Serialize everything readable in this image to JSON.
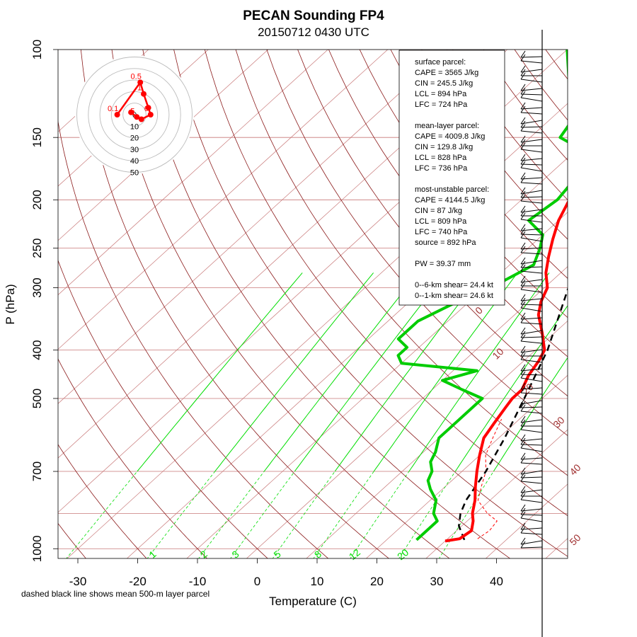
{
  "chart_data": {
    "type": "skew-t log-p sounding",
    "title": "PECAN Sounding FP4",
    "subtitle": "20150712 0430 UTC",
    "xlabel": "Temperature (C)",
    "ylabel": "P (hPa)",
    "footnote": "dashed black line shows mean 500-m layer parcel",
    "x_ticks": [
      -30,
      -20,
      -10,
      0,
      10,
      20,
      30,
      40
    ],
    "y_ticks": [
      100,
      150,
      200,
      250,
      300,
      400,
      500,
      700,
      1000
    ],
    "ylim_hpa": [
      1050,
      100
    ],
    "dry_adiabat_labels": [
      "0",
      "10",
      "20",
      "30",
      "40",
      "50"
    ],
    "mixing_ratio_labels": [
      "1",
      "2",
      "3",
      "5",
      "8",
      "12",
      "20"
    ],
    "hodograph_ring_labels": [
      "0",
      "10",
      "20",
      "30",
      "40",
      "50"
    ],
    "hodograph_height_labels": [
      "0.5",
      "1",
      "0.1",
      "6",
      "5"
    ],
    "colors": {
      "temperature": "#ff0000",
      "dewpoint": "#00cc00",
      "isotherm": "#c87878",
      "dry_adiabat": "#8b1a1a",
      "mixing_ratio": "#00dd00",
      "parcel": "#000000",
      "label_brown": "#a03030"
    },
    "stats_panel": [
      "surface parcel:",
      "CAPE = 3565 J/kg",
      "CIN = 245.5 J/kg",
      "LCL = 894 hPa",
      "LFC = 724 hPa",
      "",
      "mean-layer parcel:",
      "CAPE = 4009.8 J/kg",
      "CIN = 129.8 J/kg",
      "LCL = 828 hPa",
      "LFC = 736 hPa",
      "",
      "most-unstable parcel:",
      "CAPE = 4144.5 J/kg",
      "CIN = 87 J/kg",
      "LCL = 809 hPa",
      "LFC = 740 hPa",
      "source = 892 hPa",
      "",
      "PW =  39.37 mm",
      "",
      "0--6-km shear= 24.4 kt",
      "0--1-km shear= 24.6 kt"
    ],
    "temperature": {
      "name": "Temperature",
      "points": [
        [
          965,
          30
        ],
        [
          955,
          32
        ],
        [
          920,
          32.5
        ],
        [
          880,
          31
        ],
        [
          850,
          29.5
        ],
        [
          800,
          27.5
        ],
        [
          750,
          25
        ],
        [
          700,
          22.5
        ],
        [
          650,
          20
        ],
        [
          600,
          17.5
        ],
        [
          560,
          16.5
        ],
        [
          520,
          15.5
        ],
        [
          500,
          15
        ],
        [
          480,
          15
        ],
        [
          450,
          13.5
        ],
        [
          420,
          12.5
        ],
        [
          400,
          11.5
        ],
        [
          370,
          8
        ],
        [
          340,
          4
        ],
        [
          320,
          2
        ],
        [
          300,
          0.5
        ],
        [
          280,
          -2.5
        ],
        [
          260,
          -5
        ],
        [
          240,
          -7.5
        ],
        [
          220,
          -10
        ],
        [
          200,
          -12
        ],
        [
          180,
          -15
        ],
        [
          165,
          -17
        ],
        [
          150,
          -20
        ],
        [
          140,
          -21
        ],
        [
          132,
          -20
        ],
        [
          125,
          -19
        ],
        [
          115,
          -20
        ],
        [
          105,
          -20
        ],
        [
          100,
          -20
        ]
      ]
    },
    "dewpoint": {
      "name": "Dewpoint",
      "points": [
        [
          960,
          25
        ],
        [
          930,
          25
        ],
        [
          880,
          25
        ],
        [
          850,
          23
        ],
        [
          800,
          21
        ],
        [
          760,
          18
        ],
        [
          730,
          16
        ],
        [
          700,
          15
        ],
        [
          670,
          13
        ],
        [
          640,
          12
        ],
        [
          600,
          10
        ],
        [
          560,
          10
        ],
        [
          520,
          10
        ],
        [
          500,
          10
        ],
        [
          480,
          5
        ],
        [
          460,
          0
        ],
        [
          440,
          4
        ],
        [
          425,
          -10
        ],
        [
          410,
          -12
        ],
        [
          395,
          -12
        ],
        [
          380,
          -15
        ],
        [
          365,
          -15
        ],
        [
          350,
          -15
        ],
        [
          320,
          -12
        ],
        [
          305,
          -10
        ],
        [
          300,
          -12
        ],
        [
          290,
          -8
        ],
        [
          270,
          -6
        ],
        [
          250,
          -8
        ],
        [
          235,
          -10
        ],
        [
          220,
          -15
        ],
        [
          200,
          -14
        ],
        [
          180,
          -15
        ],
        [
          165,
          -15
        ],
        [
          150,
          -25
        ],
        [
          140,
          -26
        ],
        [
          130,
          -29
        ],
        [
          100,
          -40
        ]
      ]
    },
    "parcel": {
      "name": "Mean-layer parcel",
      "points": [
        [
          960,
          33
        ],
        [
          900,
          29.5
        ],
        [
          850,
          27.5
        ],
        [
          800,
          26
        ],
        [
          700,
          24
        ],
        [
          600,
          21
        ],
        [
          500,
          17
        ],
        [
          400,
          12
        ],
        [
          300,
          4
        ],
        [
          250,
          -2
        ],
        [
          200,
          -9
        ],
        [
          150,
          -18
        ],
        [
          100,
          -34
        ]
      ]
    },
    "virtual_parcel": {
      "name": "Surface parcel (dashed red)",
      "points": [
        [
          955,
          35
        ],
        [
          920,
          35.5
        ],
        [
          880,
          35
        ],
        [
          850,
          32
        ],
        [
          800,
          28
        ],
        [
          750,
          26
        ],
        [
          700,
          24
        ],
        [
          650,
          21
        ],
        [
          600,
          19
        ],
        [
          550,
          17
        ]
      ]
    },
    "hodograph": [
      {
        "label": "0.1",
        "u": -15,
        "v": 0
      },
      {
        "label": "0.5",
        "u": 5,
        "v": 28
      },
      {
        "label": "1",
        "u": 8,
        "v": 18
      },
      {
        "label": "",
        "u": 12,
        "v": 6
      },
      {
        "label": "6",
        "u": 14,
        "v": 0
      },
      {
        "label": "",
        "u": 6,
        "v": -4
      },
      {
        "label": "5",
        "u": 2,
        "v": -2
      },
      {
        "label": "",
        "u": -3,
        "v": 2
      }
    ]
  }
}
